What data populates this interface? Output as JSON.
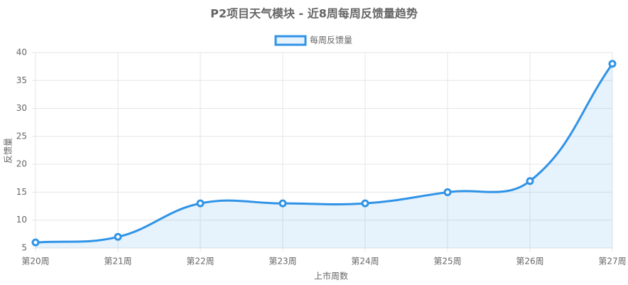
{
  "chart_data": {
    "type": "line",
    "title": "P2项目天气模块 - 近8周每周反馈量趋势",
    "x_label": "上市周数",
    "y_label": "反馈量",
    "categories": [
      "第20周",
      "第21周",
      "第22周",
      "第23周",
      "第24周",
      "第25周",
      "第26周",
      "第27周"
    ],
    "series": [
      {
        "name": "每周反馈量",
        "color": "#2f93e6",
        "values": [
          6,
          7,
          13,
          13,
          13,
          15,
          17,
          38
        ]
      }
    ],
    "ylim": [
      5,
      40
    ],
    "yticks": [
      5,
      10,
      15,
      20,
      25,
      30,
      35,
      40
    ],
    "grid": true,
    "legend": "top"
  }
}
